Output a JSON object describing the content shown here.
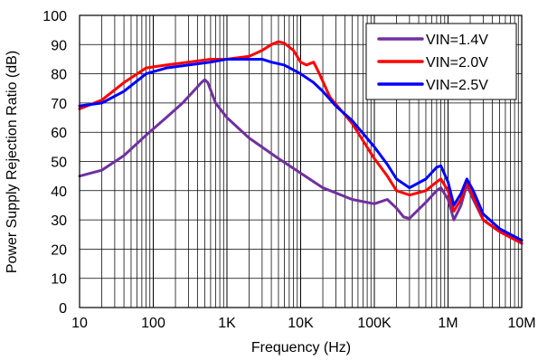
{
  "chart_data": {
    "type": "line",
    "title": "",
    "xlabel": "Frequency (Hz)",
    "ylabel": "Power Supply Rejection Ratio (dB)",
    "xscale": "log",
    "xlim": [
      10,
      10000000
    ],
    "ylim": [
      0,
      100
    ],
    "x_ticks": [
      {
        "value": 10,
        "label": "10"
      },
      {
        "value": 100,
        "label": "100"
      },
      {
        "value": 1000,
        "label": "1K"
      },
      {
        "value": 10000,
        "label": "10K"
      },
      {
        "value": 100000,
        "label": "100K"
      },
      {
        "value": 1000000,
        "label": "1M"
      },
      {
        "value": 10000000,
        "label": "10M"
      }
    ],
    "y_ticks": [
      0,
      10,
      20,
      30,
      40,
      50,
      60,
      70,
      80,
      90,
      100
    ],
    "grid": true,
    "legend_position": "top-right",
    "series": [
      {
        "name": "VIN=1.4V",
        "color": "#7030A0",
        "points": [
          [
            10,
            45
          ],
          [
            20,
            47
          ],
          [
            40,
            52
          ],
          [
            80,
            59
          ],
          [
            150,
            65
          ],
          [
            250,
            70
          ],
          [
            350,
            74
          ],
          [
            450,
            77
          ],
          [
            500,
            78
          ],
          [
            550,
            77
          ],
          [
            700,
            70
          ],
          [
            1000,
            65
          ],
          [
            2000,
            58
          ],
          [
            5000,
            51
          ],
          [
            10000,
            46
          ],
          [
            20000,
            41
          ],
          [
            50000,
            37
          ],
          [
            100000,
            35.5
          ],
          [
            150000,
            37
          ],
          [
            200000,
            34
          ],
          [
            250000,
            31
          ],
          [
            300000,
            30.5
          ],
          [
            500000,
            36
          ],
          [
            700000,
            40
          ],
          [
            800000,
            41
          ],
          [
            1000000,
            37
          ],
          [
            1200000,
            30
          ],
          [
            1500000,
            35
          ],
          [
            1800000,
            42
          ],
          [
            2200000,
            37
          ],
          [
            3000000,
            30
          ],
          [
            5000000,
            26
          ],
          [
            10000000,
            22
          ]
        ]
      },
      {
        "name": "VIN=2.0V",
        "color": "#FF0000",
        "points": [
          [
            10,
            68
          ],
          [
            20,
            71
          ],
          [
            40,
            77
          ],
          [
            80,
            82
          ],
          [
            150,
            83
          ],
          [
            300,
            84
          ],
          [
            600,
            85
          ],
          [
            1000,
            85
          ],
          [
            2000,
            86
          ],
          [
            3000,
            88
          ],
          [
            4000,
            90
          ],
          [
            5000,
            91
          ],
          [
            6000,
            90.5
          ],
          [
            8000,
            88
          ],
          [
            10000,
            84
          ],
          [
            12000,
            83
          ],
          [
            15000,
            84
          ],
          [
            18000,
            80
          ],
          [
            25000,
            72
          ],
          [
            50000,
            63
          ],
          [
            100000,
            51
          ],
          [
            150000,
            45
          ],
          [
            200000,
            40
          ],
          [
            300000,
            38.5
          ],
          [
            500000,
            40
          ],
          [
            700000,
            43
          ],
          [
            800000,
            44
          ],
          [
            1000000,
            40
          ],
          [
            1200000,
            33
          ],
          [
            1500000,
            37
          ],
          [
            1800000,
            43
          ],
          [
            2200000,
            38
          ],
          [
            3000000,
            30
          ],
          [
            5000000,
            26
          ],
          [
            10000000,
            22
          ]
        ]
      },
      {
        "name": "VIN=2.5V",
        "color": "#0000FF",
        "points": [
          [
            10,
            69
          ],
          [
            20,
            70
          ],
          [
            40,
            74
          ],
          [
            80,
            80
          ],
          [
            150,
            82
          ],
          [
            300,
            83
          ],
          [
            600,
            84
          ],
          [
            1000,
            85
          ],
          [
            2000,
            85
          ],
          [
            3000,
            85
          ],
          [
            4000,
            84
          ],
          [
            6000,
            83
          ],
          [
            10000,
            80
          ],
          [
            15000,
            77
          ],
          [
            20000,
            74
          ],
          [
            30000,
            69
          ],
          [
            50000,
            64
          ],
          [
            100000,
            55
          ],
          [
            150000,
            49
          ],
          [
            200000,
            44
          ],
          [
            300000,
            41
          ],
          [
            500000,
            44
          ],
          [
            700000,
            48
          ],
          [
            800000,
            48.5
          ],
          [
            1000000,
            43
          ],
          [
            1200000,
            35
          ],
          [
            1500000,
            39
          ],
          [
            1800000,
            44
          ],
          [
            2200000,
            40
          ],
          [
            3000000,
            32
          ],
          [
            5000000,
            27
          ],
          [
            10000000,
            23
          ]
        ]
      }
    ]
  },
  "legend": {
    "title": "",
    "items": [
      "VIN=1.4V",
      "VIN=2.0V",
      "VIN=2.5V"
    ]
  },
  "colors": {
    "plot_background": "#ffffff",
    "grid": "#000000",
    "axis": "#000000",
    "text": "#000000"
  }
}
